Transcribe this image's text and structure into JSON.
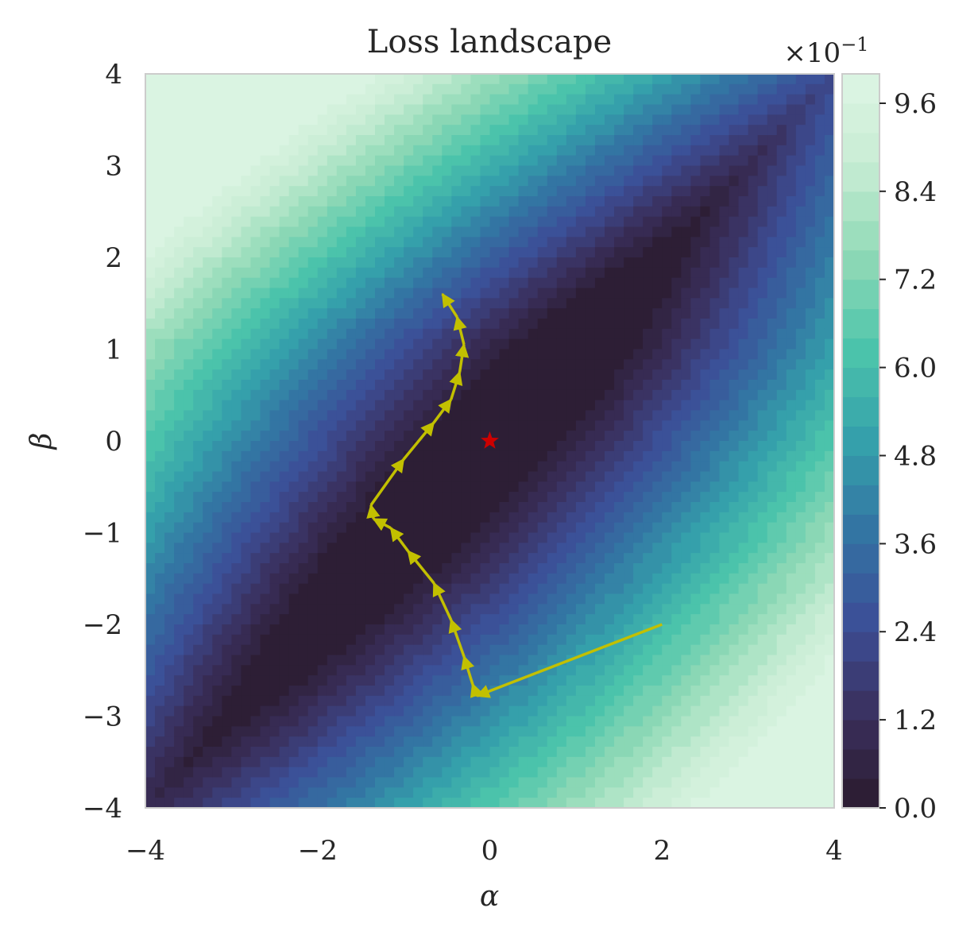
{
  "chart_data": {
    "type": "contour",
    "title": "Loss landscape",
    "xlabel": "α",
    "ylabel": "β",
    "xlim": [
      -4,
      4
    ],
    "ylim": [
      -4,
      4
    ],
    "x_ticks": [
      -4,
      -2,
      0,
      2,
      4
    ],
    "y_ticks": [
      -4,
      -3,
      -2,
      -1,
      0,
      1,
      2,
      3,
      4
    ],
    "x_tick_labels": [
      "−4",
      "−2",
      "0",
      "2",
      "4"
    ],
    "y_tick_labels": [
      "−4",
      "−3",
      "−2",
      "−1",
      "0",
      "1",
      "2",
      "3",
      "4"
    ],
    "colorbar": {
      "range": [
        0.0,
        1.0
      ],
      "ticks": [
        0.0,
        1.2,
        2.4,
        3.6,
        4.8,
        6.0,
        7.2,
        8.4,
        9.6
      ],
      "tick_labels": [
        "0.0",
        "1.2",
        "2.4",
        "3.6",
        "4.8",
        "6.0",
        "7.2",
        "8.4",
        "9.6"
      ],
      "scale_label": "×10",
      "scale_exponent": "−1",
      "levels": 25
    },
    "colormap": [
      "#2b1b2e",
      "#3a2f5c",
      "#3c4e97",
      "#3373a3",
      "#35a0ab",
      "#4cc4ab",
      "#8fd9b6",
      "#c7ecd3",
      "#def5e5"
    ],
    "minimum": {
      "x": 0.0,
      "y": 0.0,
      "color": "#cc0000"
    },
    "trajectory": {
      "color": "#c2c000",
      "points": [
        [
          2.0,
          -2.0
        ],
        [
          -0.15,
          -2.78
        ],
        [
          -0.2,
          -2.65
        ],
        [
          -0.3,
          -2.35
        ],
        [
          -0.45,
          -1.95
        ],
        [
          -0.65,
          -1.55
        ],
        [
          -0.95,
          -1.2
        ],
        [
          -1.15,
          -0.95
        ],
        [
          -1.35,
          -0.85
        ],
        [
          -1.38,
          -0.7
        ],
        [
          -1.0,
          -0.2
        ],
        [
          -0.65,
          0.2
        ],
        [
          -0.45,
          0.45
        ],
        [
          -0.35,
          0.75
        ],
        [
          -0.3,
          1.05
        ],
        [
          -0.38,
          1.35
        ],
        [
          -0.55,
          1.6
        ]
      ]
    }
  }
}
